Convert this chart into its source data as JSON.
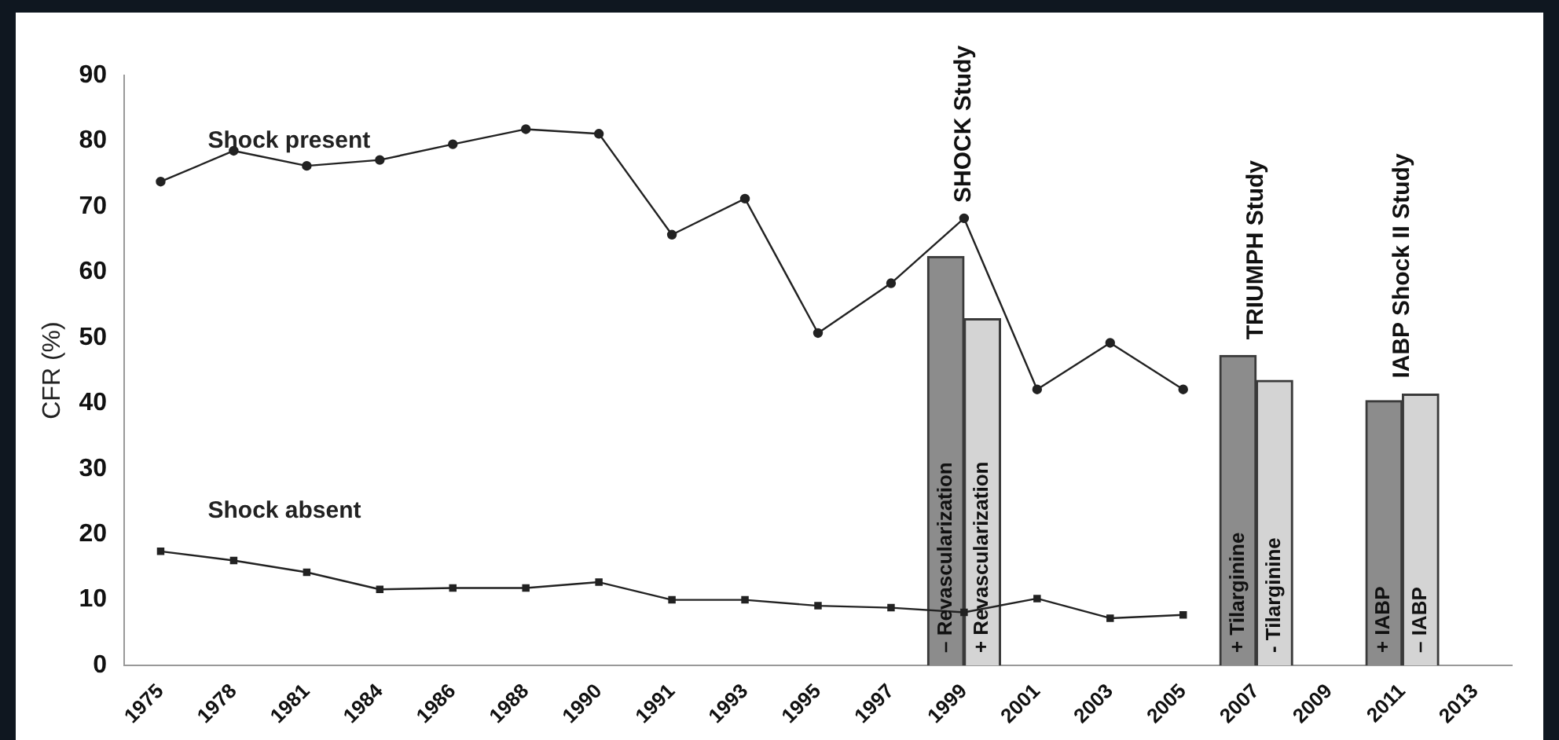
{
  "chart_data": {
    "type": "line",
    "ylabel": "CFR (%)",
    "categories": [
      "1975",
      "1978",
      "1981",
      "1984",
      "1986",
      "1988",
      "1990",
      "1991",
      "1993",
      "1995",
      "1997",
      "1999",
      "2001",
      "2003",
      "2005",
      "2007",
      "2009",
      "2011",
      "2013"
    ],
    "series": [
      {
        "name": "Shock present",
        "color": "#222222",
        "marker": "circle",
        "values": [
          73.8,
          78.5,
          76.2,
          77.1,
          79.5,
          81.8,
          81.1,
          65.7,
          71.2,
          50.7,
          58.3,
          68.2,
          42.1,
          49.2,
          42.1,
          null,
          null,
          null,
          null
        ]
      },
      {
        "name": "Shock absent",
        "color": "#222222",
        "marker": "square",
        "values": [
          17.4,
          16.0,
          14.2,
          11.6,
          11.8,
          11.8,
          12.7,
          10.0,
          10.0,
          9.1,
          8.8,
          8.1,
          10.2,
          7.2,
          7.7,
          null,
          null,
          null,
          null
        ]
      },
      {
        "type": "bar",
        "color": "#8c8c8c",
        "values": [
          null,
          null,
          null,
          null,
          null,
          null,
          null,
          null,
          null,
          null,
          null,
          62.4,
          null,
          null,
          null,
          47.3,
          null,
          40.4,
          null
        ],
        "value_labels": [
          null,
          null,
          null,
          null,
          null,
          null,
          null,
          null,
          null,
          null,
          null,
          "– Revascularization",
          null,
          null,
          null,
          "+ Tilarginine",
          null,
          "+ IABP",
          null
        ]
      },
      {
        "type": "bar",
        "color": "#d4d4d4",
        "values": [
          null,
          null,
          null,
          null,
          null,
          null,
          null,
          null,
          null,
          null,
          null,
          52.9,
          null,
          null,
          null,
          43.5,
          null,
          41.4,
          null
        ],
        "value_labels": [
          null,
          null,
          null,
          null,
          null,
          null,
          null,
          null,
          null,
          null,
          null,
          "+ Revascularization",
          null,
          null,
          null,
          "- Tilarginine",
          null,
          "– IABP",
          null
        ]
      }
    ],
    "annotations": [
      "SHOCK Study",
      "TRIUMPH Study",
      "IABP Shock II Study"
    ],
    "ylim": [
      0,
      90
    ],
    "yticks": [
      0,
      10,
      20,
      30,
      40,
      50,
      60,
      70,
      80,
      90
    ],
    "grid": false,
    "legend": false
  }
}
